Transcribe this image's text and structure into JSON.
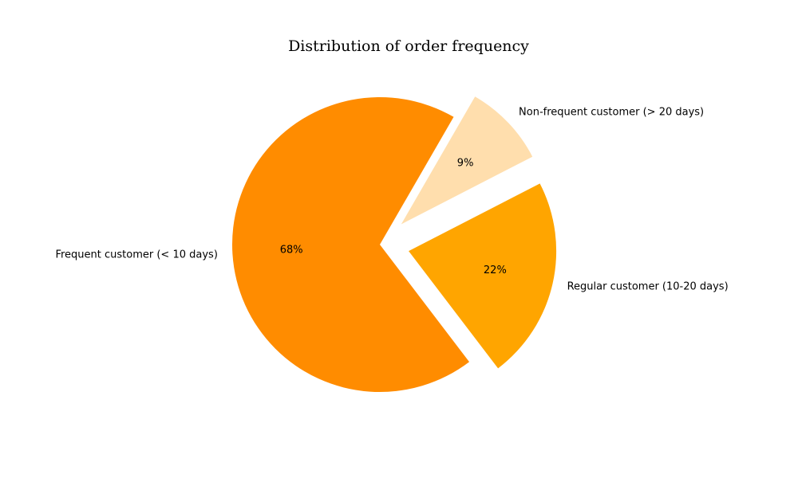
{
  "chart_data": {
    "type": "pie",
    "title": "Distribution of order frequency",
    "categories": [
      "Frequent customer (< 10 days)",
      "Regular customer (10-20 days)",
      "Non-frequent customer (> 20 days)"
    ],
    "values": [
      68,
      22,
      9
    ],
    "value_labels": [
      "68%",
      "22%",
      "9%"
    ],
    "colors": [
      "#ff8c00",
      "#ffa500",
      "#ffdead"
    ],
    "exploded": [
      false,
      true,
      true
    ],
    "legend": "none",
    "grid": false
  }
}
